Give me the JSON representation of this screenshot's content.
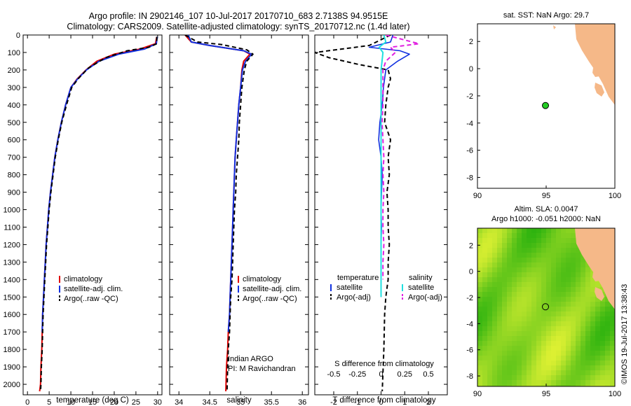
{
  "header": {
    "line1": "Argo profile: IN 2902146_107 10-Jul-2017 20170710_683 2.7138S 94.9515E",
    "line2": "Climatology: CARS2009. Satellite-adjusted climatology: synTS_20170712.nc (1.4d later)"
  },
  "colors": {
    "climatology": "#e00000",
    "satellite": "#1030e0",
    "argo": "#000000",
    "sat_salinity": "#20e0e0",
    "argo_adj_salinity": "#e020e0",
    "land": "#f5b888",
    "sea_sst": "#ffffff",
    "argo_point": "#22cc22"
  },
  "chart_data": [
    {
      "type": "line",
      "name": "temperature-profile",
      "xlabel": "temperature (deg C)",
      "ylabel": "",
      "xlim": [
        -1,
        31
      ],
      "ylim": [
        2060,
        0
      ],
      "xticks": [
        0,
        5,
        10,
        15,
        20,
        25,
        30
      ],
      "yticks": [
        0,
        100,
        200,
        300,
        400,
        500,
        600,
        700,
        800,
        900,
        1000,
        1100,
        1200,
        1300,
        1400,
        1500,
        1600,
        1700,
        1800,
        1900,
        2000
      ],
      "legend": [
        "climatology",
        "satellite-adj. clim.",
        "Argo(..raw -QC)"
      ],
      "series": [
        {
          "name": "climatology",
          "x": [
            29.8,
            29.5,
            26,
            20,
            16,
            13.5,
            11.5,
            10,
            8.8,
            7.8,
            7,
            6.3,
            5.8,
            5.3,
            4.9,
            4.6,
            4.3,
            4.1,
            3.9,
            3.7,
            3.5,
            3.4,
            3.3,
            3.1,
            3.0,
            2.8
          ],
          "y": [
            10,
            50,
            80,
            110,
            150,
            200,
            250,
            300,
            400,
            500,
            600,
            700,
            800,
            900,
            1000,
            1100,
            1200,
            1300,
            1400,
            1500,
            1600,
            1700,
            1800,
            1900,
            2000,
            2040
          ]
        },
        {
          "name": "satellite-adj. clim.",
          "x": [
            29.9,
            29.7,
            27,
            21,
            16.5,
            13.6,
            11.6,
            10,
            8.8,
            7.8,
            7,
            6.3,
            5.8,
            5.3,
            4.9,
            4.6,
            4.3,
            4.1,
            3.9,
            3.7,
            3.5,
            3.4
          ],
          "y": [
            10,
            50,
            80,
            110,
            150,
            200,
            250,
            300,
            400,
            500,
            600,
            700,
            800,
            900,
            1000,
            1100,
            1200,
            1300,
            1400,
            1500,
            1600,
            1700
          ]
        },
        {
          "name": "Argo(..raw -QC)",
          "x": [
            29.8,
            29.8,
            28,
            23,
            18,
            14,
            11.7,
            10.2,
            9,
            7.9,
            7.1,
            6.4,
            5.9,
            5.4,
            5.0,
            4.7,
            4.4,
            4.2,
            4.0,
            3.8,
            3.6,
            3.5,
            3.4,
            3.2,
            3.1,
            3.0
          ],
          "y": [
            10,
            50,
            70,
            90,
            130,
            190,
            250,
            300,
            400,
            500,
            600,
            700,
            800,
            900,
            1000,
            1100,
            1200,
            1300,
            1400,
            1500,
            1600,
            1700,
            1800,
            1900,
            2000,
            2040
          ]
        }
      ]
    },
    {
      "type": "line",
      "name": "salinity-profile",
      "xlabel": "salinity",
      "xlim": [
        33.85,
        36.1
      ],
      "ylim": [
        2060,
        0
      ],
      "xticks": [
        34,
        34.5,
        35,
        35.5,
        36
      ],
      "legend": [
        "climatology",
        "satellite-adj. clim.",
        "Argo(..raw -QC)"
      ],
      "annotation": [
        "Indian ARGO",
        "PI: M Ravichandran"
      ],
      "series": [
        {
          "name": "climatology",
          "x": [
            34.1,
            34.2,
            34.5,
            35.05,
            35.15,
            35.05,
            35.02,
            35.0,
            34.97,
            34.95,
            34.93,
            34.91,
            34.9,
            34.89,
            34.88,
            34.87,
            34.86,
            34.85,
            34.84,
            34.83,
            34.82,
            34.8,
            34.79,
            34.77,
            34.76
          ],
          "y": [
            0,
            40,
            60,
            90,
            110,
            150,
            200,
            300,
            400,
            500,
            600,
            700,
            800,
            900,
            1000,
            1100,
            1200,
            1300,
            1400,
            1500,
            1600,
            1700,
            1800,
            1900,
            2040
          ]
        },
        {
          "name": "satellite-adj. clim.",
          "x": [
            34.15,
            34.2,
            34.5,
            35.05,
            35.18,
            35.08,
            35.03,
            35.0,
            34.97,
            34.95,
            34.93,
            34.91,
            34.9,
            34.89,
            34.88,
            34.87,
            34.86,
            34.85,
            34.84,
            34.83,
            34.82,
            34.8
          ],
          "y": [
            0,
            40,
            60,
            90,
            110,
            150,
            200,
            300,
            400,
            500,
            600,
            700,
            800,
            900,
            1000,
            1100,
            1200,
            1300,
            1400,
            1500,
            1600,
            1700
          ]
        },
        {
          "name": "Argo(..raw -QC)",
          "x": [
            34.1,
            34.3,
            34.7,
            35.1,
            35.2,
            35.1,
            35.06,
            35.02,
            35.0,
            34.98,
            34.97,
            34.95,
            34.93,
            34.92,
            34.9,
            34.89,
            34.88,
            34.87,
            34.86,
            34.84,
            34.83,
            34.82,
            34.8,
            34.79,
            34.78
          ],
          "y": [
            0,
            40,
            55,
            85,
            110,
            150,
            200,
            300,
            400,
            500,
            600,
            700,
            800,
            900,
            1000,
            1100,
            1200,
            1300,
            1400,
            1500,
            1600,
            1700,
            1800,
            1900,
            2040
          ]
        }
      ]
    },
    {
      "type": "line",
      "name": "difference-profile",
      "xlabel": "T difference from climatology",
      "xlabel_top": "S difference from climatology",
      "xlim": [
        -2.8,
        2.8
      ],
      "ylim": [
        2060,
        0
      ],
      "xticks": [
        -2,
        -1,
        0,
        1,
        2
      ],
      "x2ticks": [
        -0.5,
        -0.25,
        0,
        0.25,
        0.5
      ],
      "legend_titles": [
        "temperature",
        "salinity"
      ],
      "legend": [
        "satellite",
        "Argo(-adj)",
        "satellite",
        "Argo(-adj)"
      ],
      "series": [
        {
          "name": "T satellite",
          "x": [
            0.5,
            0.4,
            -0.5,
            0.8,
            1.2,
            0.7,
            0.2,
            0.1,
            0.05,
            -0.05,
            -0.1,
            0,
            0.05,
            0.02,
            0,
            0.02,
            0,
            0,
            0
          ],
          "y": [
            0,
            40,
            70,
            90,
            110,
            150,
            200,
            300,
            400,
            500,
            600,
            700,
            800,
            900,
            1000,
            1100,
            1200,
            1300,
            1500
          ]
        },
        {
          "name": "T Argo(-adj)",
          "x": [
            0.4,
            -0.5,
            -2.8,
            -2.2,
            -0.9,
            0.3,
            0.4,
            0.3,
            0.2,
            0.15,
            0.4,
            0.3,
            0.35,
            0.25,
            0.3,
            0.3,
            0.35,
            0.3,
            0.3,
            0.2,
            0.15,
            0.12,
            0.05
          ],
          "y": [
            0,
            60,
            100,
            130,
            170,
            200,
            250,
            300,
            400,
            500,
            600,
            700,
            800,
            900,
            1000,
            1100,
            1200,
            1300,
            1400,
            1500,
            1600,
            1800,
            2040
          ]
        },
        {
          "name": "S satellite",
          "x": [
            0.03,
            0.05,
            -0.02,
            0.02,
            0.01,
            0,
            0,
            0,
            0,
            0,
            0,
            0,
            0,
            0,
            0,
            0,
            0,
            0,
            0
          ],
          "y": [
            0,
            40,
            70,
            100,
            150,
            200,
            300,
            400,
            500,
            600,
            700,
            800,
            900,
            1000,
            1100,
            1200,
            1300,
            1400,
            1500
          ]
        },
        {
          "name": "S Argo(-adj)",
          "x": [
            0.05,
            0.4,
            0.1,
            0.15,
            0.05,
            0.02,
            0.02,
            0.02,
            0.01,
            0.02,
            0.03,
            0.02,
            0.03,
            0.02,
            0.02,
            0.03,
            0.02,
            0.02
          ],
          "y": [
            0,
            50,
            70,
            100,
            150,
            200,
            300,
            400,
            500,
            600,
            700,
            800,
            900,
            1000,
            1100,
            1200,
            1300,
            1400
          ]
        }
      ]
    },
    {
      "type": "scatter",
      "name": "sst-map",
      "title": "sat. SST: NaN Argo: 29.7",
      "xlim": [
        90,
        100
      ],
      "ylim": [
        -8.8,
        3.3
      ],
      "xticks": [
        90,
        95,
        100
      ],
      "yticks": [
        -8,
        -6,
        -4,
        -2,
        0,
        2
      ],
      "point": {
        "lon": 94.95,
        "lat": -2.71
      }
    },
    {
      "type": "heatmap",
      "name": "sla-map",
      "title_lines": [
        "Altim. SLA: 0.0047",
        "Argo h1000: -0.051 h2000: NaN"
      ],
      "xlim": [
        90,
        100
      ],
      "ylim": [
        -8.8,
        3.3
      ],
      "xticks": [
        90,
        95,
        100
      ],
      "yticks": [
        -8,
        -6,
        -4,
        -2,
        0,
        2
      ],
      "point": {
        "lon": 94.95,
        "lat": -2.71
      }
    }
  ],
  "footer": {
    "imos_stamp": "©IMOS 19-Jul-2017 13:38:43"
  }
}
